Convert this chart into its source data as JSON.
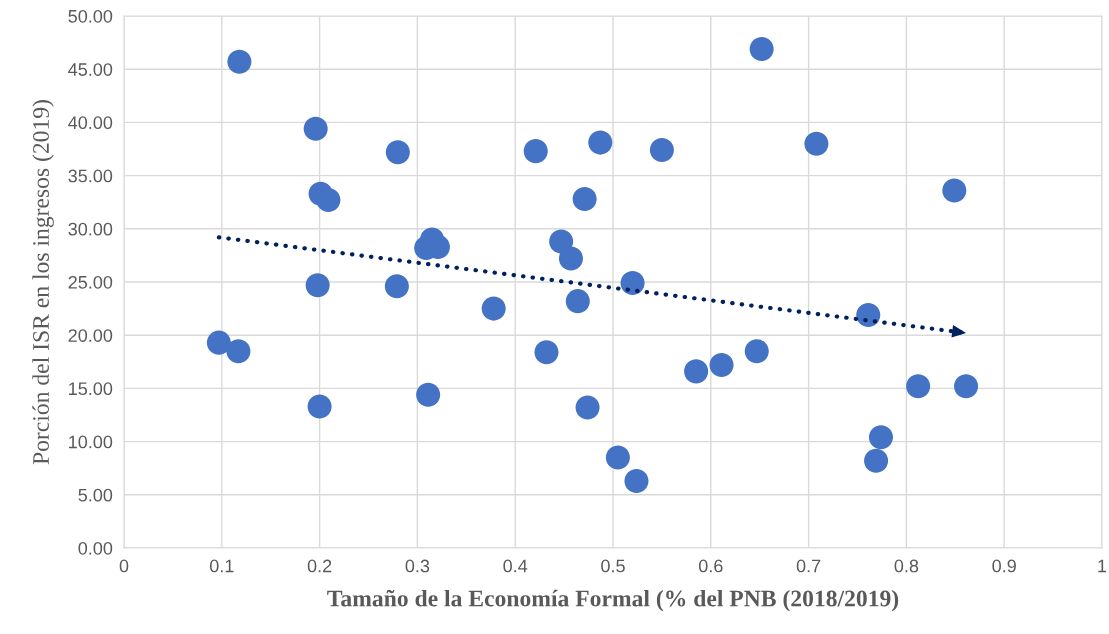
{
  "chart_data": {
    "type": "scatter",
    "xlabel": "Tamaño de la Economía Formal (% del PNB (2018/2019)",
    "ylabel": "Porción del ISR en los ingresos (2019)",
    "xlim": [
      0,
      1
    ],
    "xticks": [
      0,
      0.1,
      0.2,
      0.3,
      0.4,
      0.5,
      0.6,
      0.7,
      0.8,
      0.9,
      1
    ],
    "ylim": [
      0,
      50
    ],
    "yticks": [
      {
        "value": 0,
        "label": "0.00"
      },
      {
        "value": 5,
        "label": "5.00"
      },
      {
        "value": 10,
        "label": "10.00"
      },
      {
        "value": 15,
        "label": "15.00"
      },
      {
        "value": 20,
        "label": "20.00"
      },
      {
        "value": 25,
        "label": "25.00"
      },
      {
        "value": 30,
        "label": "30.00"
      },
      {
        "value": 35,
        "label": "35.00"
      },
      {
        "value": 40,
        "label": "40.00"
      },
      {
        "value": 45,
        "label": "45.00"
      },
      {
        "value": 50,
        "label": "50.00"
      }
    ],
    "grid": true,
    "series": [
      {
        "color": "#4472c4",
        "marker": "circle",
        "x": [
          0.097,
          0.117,
          0.118,
          0.196,
          0.201,
          0.209,
          0.198,
          0.2,
          0.28,
          0.279,
          0.311,
          0.309,
          0.321,
          0.315,
          0.378,
          0.421,
          0.432,
          0.447,
          0.457,
          0.464,
          0.471,
          0.474,
          0.487,
          0.505,
          0.52,
          0.524,
          0.55,
          0.585,
          0.611,
          0.647,
          0.652,
          0.708,
          0.761,
          0.769,
          0.774,
          0.812,
          0.849,
          0.861
        ],
        "values": [
          19.3,
          18.5,
          45.7,
          39.4,
          33.3,
          32.7,
          24.7,
          13.3,
          37.2,
          24.6,
          14.4,
          28.2,
          28.3,
          29.0,
          22.5,
          37.3,
          18.4,
          28.8,
          27.2,
          23.2,
          32.8,
          13.2,
          38.1,
          8.5,
          24.9,
          6.3,
          37.4,
          16.6,
          17.2,
          18.5,
          46.9,
          38.0,
          21.9,
          8.2,
          10.4,
          15.2,
          33.6,
          15.2
        ]
      },
      {
        "type": "line",
        "color": "#002060",
        "line_style": "dotted",
        "x": [
          0.097,
          0.861
        ],
        "values": [
          29.2,
          20.2
        ]
      }
    ]
  }
}
